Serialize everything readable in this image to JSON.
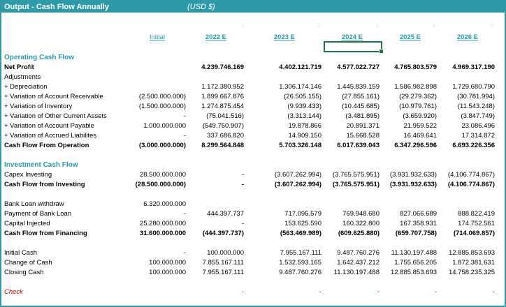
{
  "header": {
    "title": "Output - Cash Flow Annually",
    "unit": "(USD $)"
  },
  "columns": [
    "Initial",
    "2022 E",
    "2023 E",
    "2024 E",
    "2025 E",
    "2026 E"
  ],
  "ghost_cols": [
    "1",
    "2",
    "3",
    "4",
    "5"
  ],
  "rows": [
    {
      "label": "Operating Cash Flow",
      "type": "sec",
      "values": [
        "",
        "",
        "",
        "",
        "",
        ""
      ]
    },
    {
      "label": "Net Profit",
      "type": "bold",
      "values": [
        "",
        "4.239.746.169",
        "4.402.121.719",
        "4.577.022.727",
        "4.765.803.579",
        "4.969.317.190"
      ]
    },
    {
      "label": "Adjustments",
      "type": "plain",
      "values": [
        "",
        "",
        "",
        "",
        "",
        ""
      ]
    },
    {
      "label": " + Depreciation",
      "type": "plain",
      "values": [
        "",
        "1.172.380.952",
        "1.306.174.146",
        "1.445.839.159",
        "1.586.982.898",
        "1.729.680.790"
      ]
    },
    {
      "label": " + Variation of Account Receivable",
      "type": "plain",
      "values": [
        "(2.500.000.000)",
        "1.899.667.876",
        "(26.505.155)",
        "(27.855.161)",
        "(29.279.362)",
        "(30.781.994)"
      ]
    },
    {
      "label": " + Variation of Inventory",
      "type": "plain",
      "values": [
        "(1.500.000.000)",
        "1.274.875.454",
        "(9.939.433)",
        "(10.445.685)",
        "(10.979.761)",
        "(11.543.248)"
      ]
    },
    {
      "label": " + Variation of Other Current Assets",
      "type": "plain",
      "values": [
        "-",
        "(75.041.516)",
        "(3.313.144)",
        "(3.481.895)",
        "(3.659.920)",
        "(3.847.749)"
      ]
    },
    {
      "label": " + Variation of Account Payable",
      "type": "plain",
      "values": [
        "1.000.000.000",
        "(549.750.907)",
        "19.878.866",
        "20.891.371",
        "21.959.522",
        "23.086.496"
      ]
    },
    {
      "label": " + Variation of Accrued Liabilites",
      "type": "plain",
      "values": [
        "-",
        "337.686.820",
        "14.909.150",
        "15.668.528",
        "16.469.641",
        "17.314.872"
      ]
    },
    {
      "label": "Cash Flow From Operation",
      "type": "bold",
      "values": [
        "(3.000.000.000)",
        "8.299.564.848",
        "5.703.326.148",
        "6.017.639.043",
        "6.347.296.596",
        "6.693.226.356"
      ]
    },
    {
      "label": "",
      "type": "blank",
      "values": [
        "",
        "",
        "",
        "",
        "",
        ""
      ]
    },
    {
      "label": "Investment Cash Flow",
      "type": "sec",
      "values": [
        "",
        "",
        "",
        "",
        "",
        ""
      ]
    },
    {
      "label": "Capex Investing",
      "type": "plain",
      "values": [
        "28.500.000.000",
        "-",
        "(3.607.262.994)",
        "(3.765.575.951)",
        "(3.931.932.633)",
        "(4.106.774.867)"
      ]
    },
    {
      "label": "Cash Flow from Investing",
      "type": "bold",
      "values": [
        "(28.500.000.000)",
        "-",
        "(3.607.262.994)",
        "(3.765.575.951)",
        "(3.931.932.633)",
        "(4.106.774.867)"
      ]
    },
    {
      "label": "",
      "type": "blank",
      "values": [
        "",
        "",
        "",
        "",
        "",
        ""
      ]
    },
    {
      "label": "Bank Loan withdraw",
      "type": "plain",
      "values": [
        "6.320.000.000",
        "",
        "",
        "",
        "",
        ""
      ]
    },
    {
      "label": "Payment of Bank Loan",
      "type": "plain",
      "values": [
        "-",
        "444.397.737",
        "717.095.579",
        "769.948.680",
        "827.066.689",
        "888.822.419"
      ]
    },
    {
      "label": "Capital Injected",
      "type": "plain",
      "values": [
        "25.280.000.000",
        "-",
        "153.625.590",
        "160.322.800",
        "167.358.931",
        "174.752.561"
      ]
    },
    {
      "label": "Cash Flow from Financing",
      "type": "bold",
      "values": [
        "31.600.000.000",
        "(444.397.737)",
        "(563.469.989)",
        "(609.625.880)",
        "(659.707.758)",
        "(714.069.857)"
      ]
    },
    {
      "label": "",
      "type": "blank",
      "values": [
        "",
        "",
        "",
        "",
        "",
        ""
      ]
    },
    {
      "label": "Initial Cash",
      "type": "plain",
      "values": [
        "-",
        "100.000.000",
        "7.955.167.111",
        "9.487.760.276",
        "11.130.197.488",
        "12.885.853.693"
      ]
    },
    {
      "label": "Change of Cash",
      "type": "plain",
      "values": [
        "100.000.000",
        "7.855.167.111",
        "1.532.593.165",
        "1.642.437.212",
        "1.755.656.205",
        "1.872.381.631"
      ]
    },
    {
      "label": "Closing Cash",
      "type": "plain",
      "values": [
        "100.000.000",
        "7.955.167.111",
        "9.487.760.276",
        "11.130.197.488",
        "12.885.853.693",
        "14.758.235.325"
      ]
    },
    {
      "label": "",
      "type": "blank",
      "values": [
        "",
        "",
        "",
        "",
        "",
        ""
      ]
    },
    {
      "label": "Check",
      "type": "check",
      "values": [
        "",
        "-",
        "-",
        "-",
        "-",
        "-"
      ]
    }
  ]
}
